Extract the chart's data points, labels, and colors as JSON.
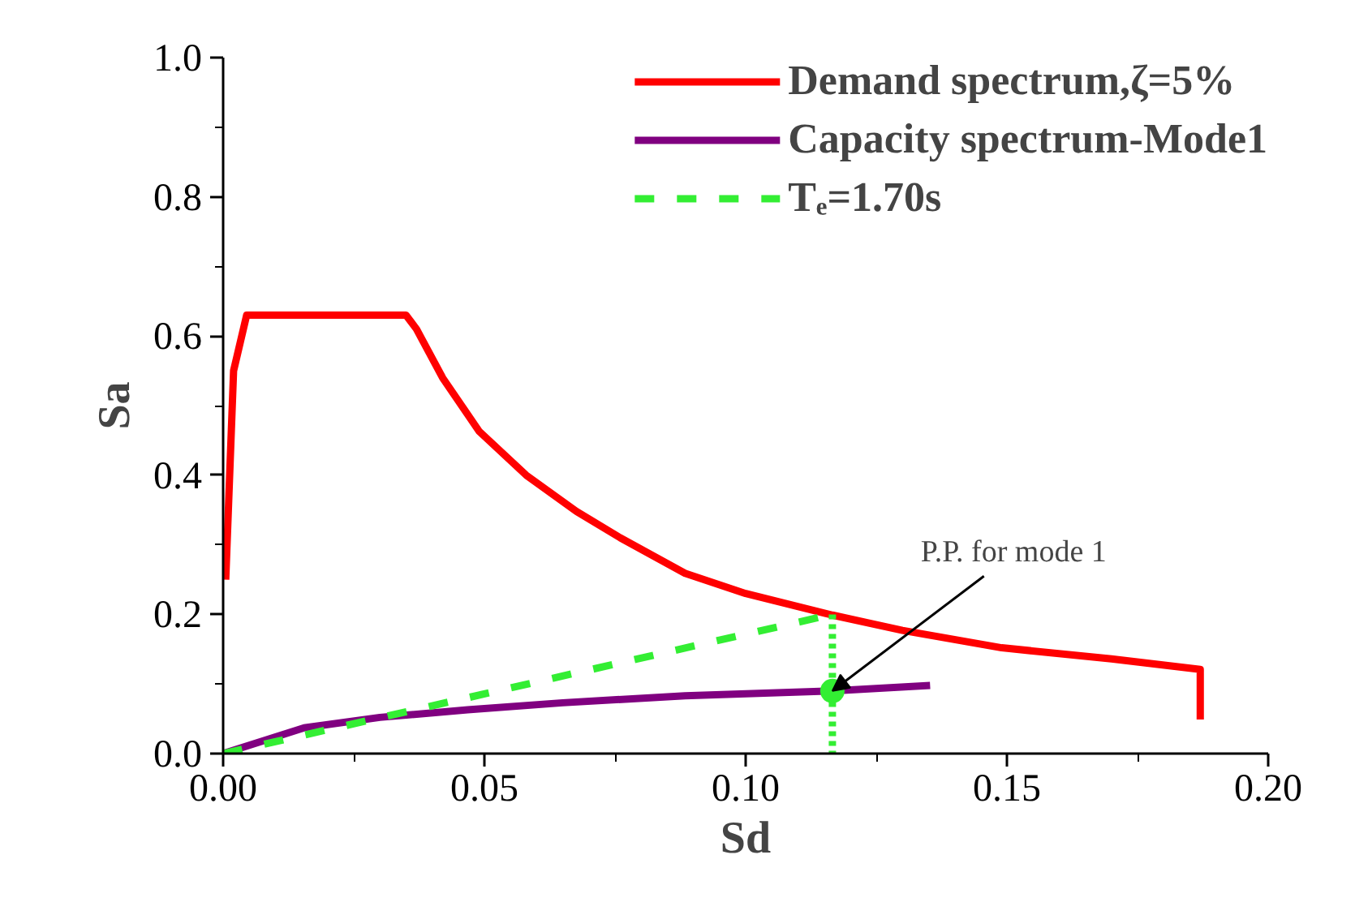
{
  "chart_data": {
    "type": "line",
    "xlabel": "Sd",
    "ylabel": "Sa",
    "xlim": [
      0,
      0.2
    ],
    "ylim": [
      0,
      1.0
    ],
    "xticks": [
      {
        "value": 0,
        "label": "0.00"
      },
      0.05,
      {
        "value": 0.1,
        "label": "0.10"
      },
      0.15,
      {
        "value": 0.2,
        "label": "0.20"
      }
    ],
    "yticks": [
      {
        "value": 0,
        "label": "0.0"
      },
      0.2,
      0.4,
      0.6,
      0.8,
      {
        "value": 1.0,
        "label": "1.0"
      }
    ],
    "legend": "top right",
    "grid": false,
    "series": [
      {
        "name": "Demand spectrum,ζ=5%",
        "color": "#ff0000",
        "line_style": "solid",
        "x": [
          0.0005,
          0.002,
          0.0045,
          0.035,
          0.037,
          0.042,
          0.049,
          0.058,
          0.0676,
          0.076,
          0.0884,
          0.1,
          0.1166,
          0.13,
          0.149,
          0.17,
          0.187,
          0.187
        ],
        "values": [
          0.25,
          0.55,
          0.63,
          0.63,
          0.61,
          0.54,
          0.463,
          0.4,
          0.348,
          0.31,
          0.259,
          0.23,
          0.199,
          0.177,
          0.152,
          0.136,
          0.121,
          0.049
        ]
      },
      {
        "name": "Capacity spectrum-Mode1",
        "color": "#800080",
        "line_style": "solid",
        "x": [
          0,
          0.0155,
          0.03,
          0.0468,
          0.065,
          0.0884,
          0.1166,
          0.1353
        ],
        "values": [
          0,
          0.037,
          0.052,
          0.063,
          0.073,
          0.083,
          0.09,
          0.098
        ]
      },
      {
        "name": "Tₑ=1.70s",
        "color": "#33ee33",
        "line_style": "dashed",
        "x": [
          0,
          0.1166
        ],
        "values": [
          0,
          0.2
        ]
      },
      {
        "color": "#33ee33",
        "line_style": "dotted",
        "x": [
          0.1166,
          0.1166
        ],
        "values": [
          0.2,
          0
        ]
      },
      {
        "type": "scatter",
        "color": "#33ee33",
        "marker": "circle",
        "x": [
          0.1166
        ],
        "values": [
          0.09
        ]
      }
    ],
    "annotations": [
      {
        "text": "P.P. for mode 1",
        "x": 0.1166,
        "y": 0.09
      }
    ]
  }
}
